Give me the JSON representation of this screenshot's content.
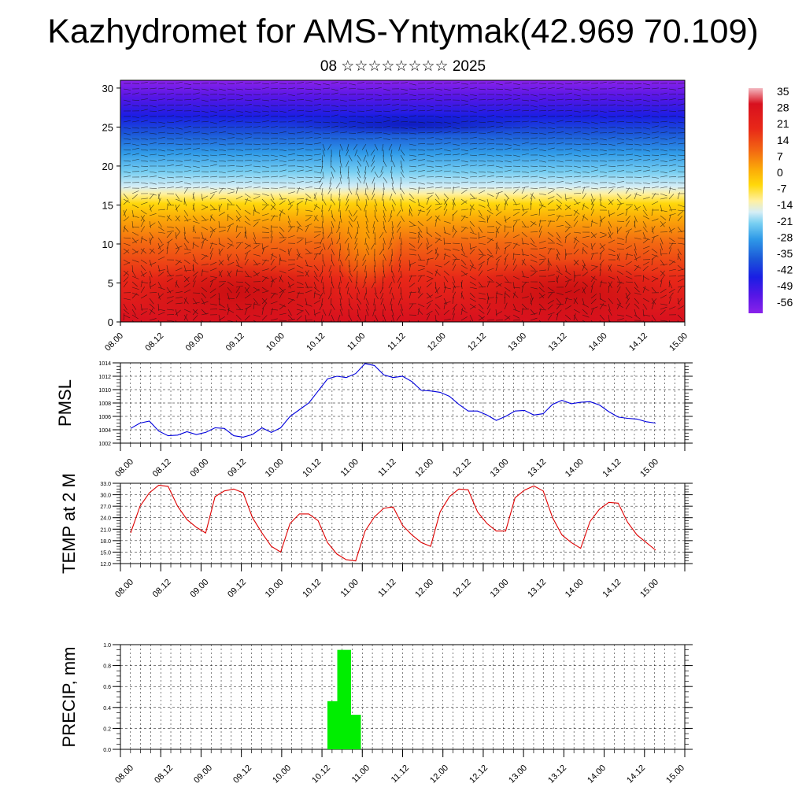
{
  "title": "Kazhydromet for AMS-Yntymak(42.969 70.109)",
  "subtitle": "08 ☆☆☆☆☆☆☆☆ 2025",
  "chart_data": [
    {
      "type": "heatmap",
      "ylim": [
        0,
        31
      ],
      "yticks": [
        "0",
        "5",
        "10",
        "15",
        "20",
        "25",
        "30"
      ],
      "x_tick_labels": [
        "08.00",
        "08.12",
        "09.00",
        "09.12",
        "10.00",
        "10.12",
        "11.00",
        "11.12",
        "12.00",
        "12.12",
        "13.00",
        "13.12",
        "14.00",
        "14.12",
        "15.00"
      ],
      "colorbar_labels": [
        "35",
        "28",
        "21",
        "14",
        "7",
        "0",
        "-7",
        "-14",
        "-21",
        "-28",
        "-35",
        "-42",
        "-49",
        "-56"
      ],
      "colormap": [
        "#f3b8c0",
        "#d8101e",
        "#e8341a",
        "#f36a12",
        "#fba00a",
        "#ffd600",
        "#fff3a0",
        "#d8ecf5",
        "#5cc4f0",
        "#1e8ee8",
        "#1b4fd8",
        "#2a14e0",
        "#6a18e8",
        "#8a22ea"
      ],
      "note": "temperature cross-section with wind vectors"
    },
    {
      "type": "line",
      "ylabel": "PMSL",
      "ylim": [
        1002,
        1014
      ],
      "yticks": [
        "1002",
        "1004",
        "1006",
        "1008",
        "1010",
        "1012",
        "1014"
      ],
      "x_tick_labels": [
        "08.00",
        "08.12",
        "09.00",
        "09.12",
        "10.00",
        "10.12",
        "11.00",
        "11.12",
        "12.00",
        "12.12",
        "13.00",
        "13.12",
        "14.00",
        "14.12",
        "15.00"
      ],
      "color": "#0000dd",
      "values": [
        1004.2,
        1005.0,
        1005.3,
        1003.8,
        1003.1,
        1003.2,
        1003.7,
        1003.3,
        1003.6,
        1004.3,
        1004.2,
        1003.1,
        1002.9,
        1003.3,
        1004.3,
        1003.6,
        1004.3,
        1006.0,
        1007.0,
        1008.0,
        1009.8,
        1011.6,
        1012.0,
        1011.8,
        1012.4,
        1013.9,
        1013.6,
        1012.2,
        1011.8,
        1012.0,
        1011.2,
        1009.9,
        1009.8,
        1009.6,
        1009.0,
        1007.8,
        1006.8,
        1006.8,
        1006.2,
        1005.4,
        1006.0,
        1006.8,
        1006.9,
        1006.2,
        1006.4,
        1007.8,
        1008.4,
        1007.9,
        1008.1,
        1008.2,
        1007.7,
        1006.7,
        1005.9,
        1005.7,
        1005.6,
        1005.2,
        1005.0
      ]
    },
    {
      "type": "line",
      "ylabel": "TEMP at 2 M",
      "ylim": [
        12,
        33
      ],
      "yticks": [
        "12.0",
        "15.0",
        "18.0",
        "21.0",
        "24.0",
        "27.0",
        "30.0",
        "33.0"
      ],
      "x_tick_labels": [
        "08.00",
        "08.12",
        "09.00",
        "09.12",
        "10.00",
        "10.12",
        "11.00",
        "11.12",
        "12.00",
        "12.12",
        "13.00",
        "13.12",
        "14.00",
        "14.12",
        "15.00"
      ],
      "color": "#dd0000",
      "values": [
        20.0,
        27.0,
        30.5,
        32.5,
        32.2,
        27.0,
        23.5,
        21.5,
        20.0,
        29.5,
        31.0,
        31.5,
        30.5,
        24.0,
        20.0,
        16.5,
        15.0,
        22.5,
        25.0,
        25.0,
        23.2,
        17.5,
        14.5,
        13.0,
        12.7,
        20.5,
        24.2,
        26.5,
        26.8,
        22.0,
        19.5,
        17.5,
        16.5,
        25.5,
        29.5,
        31.5,
        31.3,
        25.5,
        22.5,
        20.5,
        20.5,
        29.2,
        31.2,
        32.3,
        31.0,
        24.0,
        19.5,
        17.5,
        16.0,
        23.0,
        26.2,
        28.0,
        27.8,
        22.8,
        19.5,
        17.5,
        15.5
      ]
    },
    {
      "type": "bar",
      "ylabel": "PRECIP, mm",
      "ylim": [
        0,
        1
      ],
      "yticks": [
        "0.0",
        "0.2",
        "0.4",
        "0.6",
        "0.8",
        "1.0"
      ],
      "x_tick_labels": [
        "08.00",
        "08.12",
        "09.00",
        "09.12",
        "10.00",
        "10.12",
        "11.00",
        "11.12",
        "12.00",
        "12.12",
        "13.00",
        "13.12",
        "14.00",
        "14.12",
        "15.00"
      ],
      "color": "#00ee00",
      "bars": [
        {
          "x_hours": 60,
          "value": 0.46
        },
        {
          "x_hours": 63,
          "value": 0.95
        },
        {
          "x_hours": 66,
          "value": 0.33
        }
      ]
    }
  ]
}
